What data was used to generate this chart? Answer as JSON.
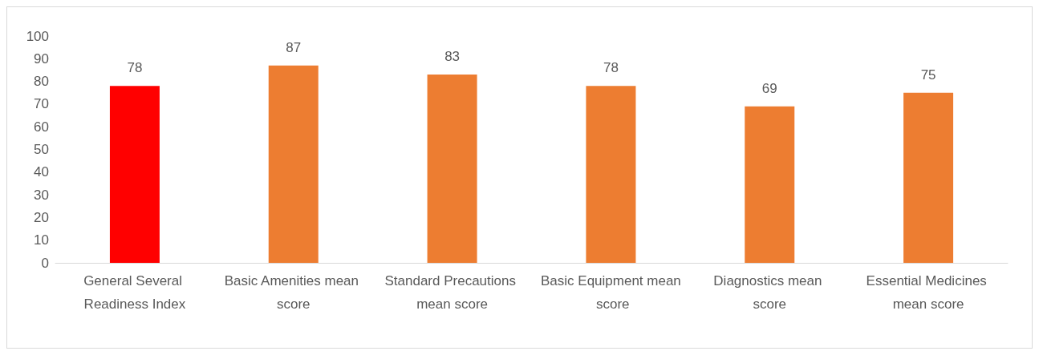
{
  "chart_data": {
    "type": "bar",
    "categories": [
      "General Several Readiness Index",
      "Basic Amenities mean score",
      "Standard Precautions mean score",
      "Basic Equipment mean score",
      "Diagnostics mean score",
      "Essential Medicines mean score"
    ],
    "values": [
      78,
      87,
      83,
      78,
      69,
      75
    ],
    "colors": [
      "#ff0000",
      "#ed7d31",
      "#ed7d31",
      "#ed7d31",
      "#ed7d31",
      "#ed7d31"
    ],
    "ylim": [
      0,
      100
    ],
    "yticks": [
      0,
      10,
      20,
      30,
      40,
      50,
      60,
      70,
      80,
      90,
      100
    ],
    "grid": false,
    "data_labels": true
  }
}
